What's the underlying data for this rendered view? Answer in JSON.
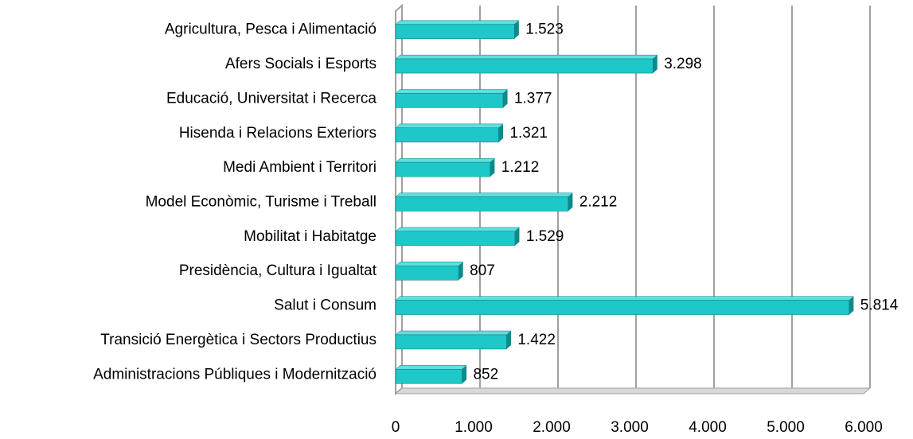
{
  "chart_data": {
    "type": "bar",
    "orientation": "horizontal",
    "categories": [
      "Agricultura, Pesca i Alimentació",
      "Afers Socials i Esports",
      "Educació, Universitat i Recerca",
      "Hisenda i Relacions Exteriors",
      "Medi Ambient i Territori",
      "Model Econòmic, Turisme i Treball",
      "Mobilitat i Habitatge",
      "Presidència, Cultura i Igualtat",
      "Salut i Consum",
      "Transició Energètica i Sectors Productius",
      "Administracions Públiques i Modernització"
    ],
    "values": [
      1523,
      3298,
      1377,
      1321,
      1212,
      2212,
      1529,
      807,
      5814,
      1422,
      852
    ],
    "value_labels": [
      "1.523",
      "3.298",
      "1.377",
      "1.321",
      "1.212",
      "2.212",
      "1.529",
      "807",
      "5.814",
      "1.422",
      "852"
    ],
    "color": "#1ec8c8",
    "xlim": [
      0,
      6000
    ],
    "xticks": [
      0,
      {
        "value": 1000,
        "label": "1.000"
      },
      {
        "value": 2000,
        "label": "2.000"
      },
      {
        "value": 3000,
        "label": "3.000"
      },
      {
        "value": 4000,
        "label": "4.000"
      },
      {
        "value": 5000,
        "label": "5.000"
      },
      {
        "value": 6000,
        "label": "6.000"
      }
    ],
    "grid": true
  }
}
